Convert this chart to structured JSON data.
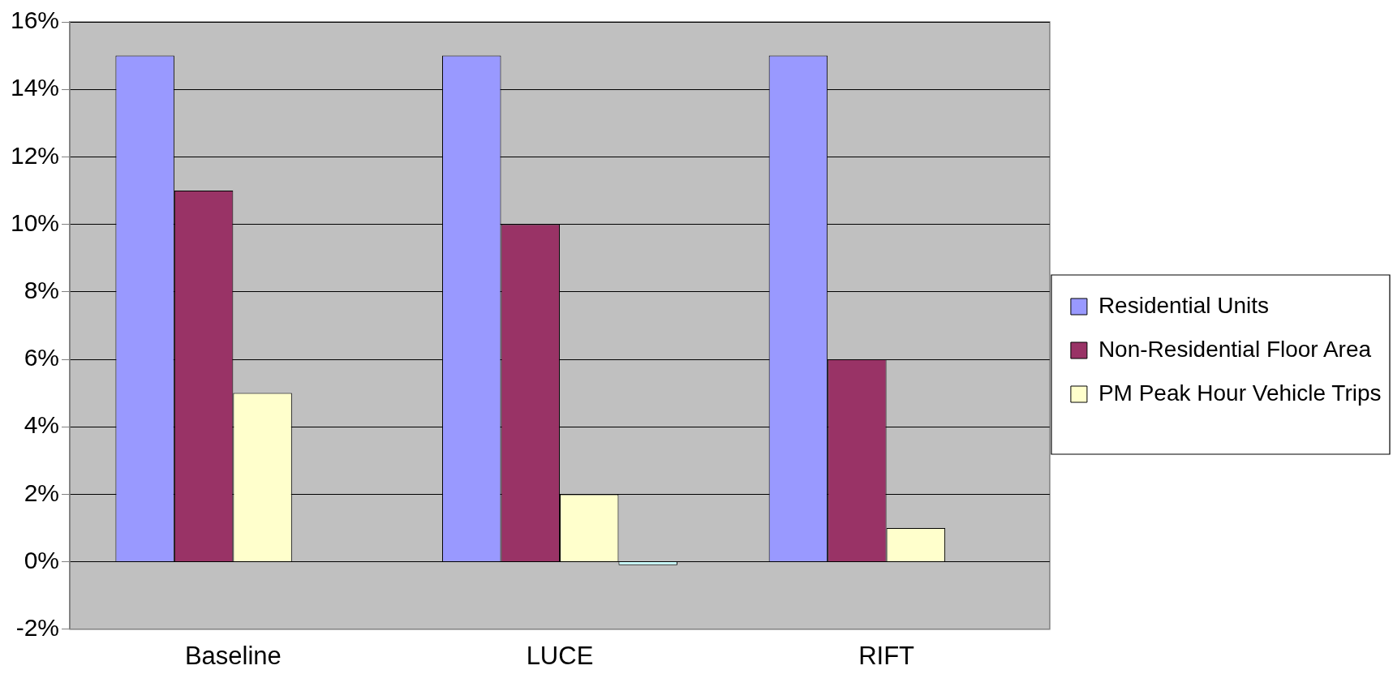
{
  "chart_data": {
    "type": "bar",
    "categories": [
      "Baseline",
      "LUCE",
      "RIFT"
    ],
    "series": [
      {
        "name": "Residential Units",
        "color": "#9999ff",
        "values": [
          15,
          15,
          15
        ]
      },
      {
        "name": "Non-Residential Floor Area",
        "color": "#993366",
        "values": [
          11,
          10,
          6
        ]
      },
      {
        "name": "PM Peak Hour Vehicle Trips",
        "color": "#ffffcc",
        "values": [
          5,
          2,
          1
        ]
      },
      {
        "color": "#ccffff",
        "values": [
          null,
          -0.1,
          null
        ]
      }
    ],
    "ylim": [
      -2,
      16
    ],
    "yticks": [
      {
        "value": -2,
        "label": "-2%"
      },
      {
        "value": 0,
        "label": "0%"
      },
      {
        "value": 2,
        "label": "2%"
      },
      {
        "value": 4,
        "label": "4%"
      },
      {
        "value": 6,
        "label": "6%"
      },
      {
        "value": 8,
        "label": "8%"
      },
      {
        "value": 10,
        "label": "10%"
      },
      {
        "value": 12,
        "label": "12%"
      },
      {
        "value": 14,
        "label": "14%"
      },
      {
        "value": 16,
        "label": "16%"
      }
    ],
    "grid": "y",
    "legend": "right"
  }
}
